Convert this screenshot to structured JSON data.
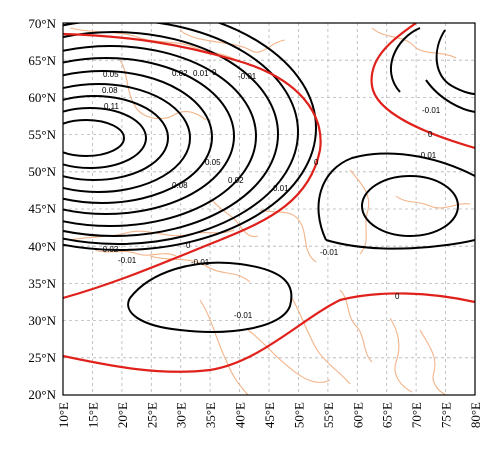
{
  "map": {
    "lat_ticks": [
      "70°N",
      "65°N",
      "60°N",
      "55°N",
      "50°N",
      "45°N",
      "40°N",
      "35°N",
      "30°N",
      "25°N",
      "20°N"
    ],
    "lon_ticks": [
      "10°E",
      "15°E",
      "20°E",
      "25°E",
      "30°E",
      "35°E",
      "40°E",
      "45°E",
      "50°E",
      "55°E",
      "60°E",
      "65°E",
      "70°E",
      "75°E",
      "80°E"
    ],
    "contour_labels": [
      "0.05",
      "0.08",
      "0.11",
      "0.02",
      "0.01",
      "0",
      "-0.01",
      "0.05",
      "0.08",
      "0.02",
      "0.01",
      "-0.02",
      "-0.01",
      "0",
      "-0.01",
      "-0.01",
      "0",
      "-0.01",
      "-0.01",
      "-0.01",
      "0",
      "0"
    ],
    "colors": {
      "zero_contour": "#e0201a",
      "contour": "#000000",
      "coastline": "#f2b48a",
      "grid": "#b5b5b5"
    }
  }
}
